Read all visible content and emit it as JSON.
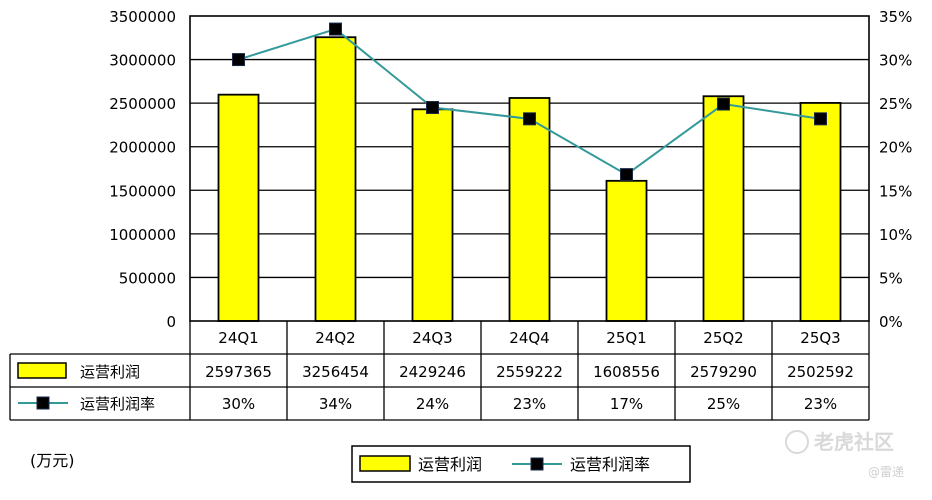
{
  "chart_data": {
    "type": "bar",
    "categories": [
      "24Q1",
      "24Q2",
      "24Q3",
      "24Q4",
      "25Q1",
      "25Q2",
      "25Q3"
    ],
    "series": [
      {
        "name": "运营利润",
        "type": "bar",
        "axis": "left",
        "values": [
          2597365,
          3256454,
          2429246,
          2559222,
          1608556,
          2579290,
          2502592
        ],
        "labels": [
          "2597365",
          "3256454",
          "2429246",
          "2559222",
          "1608556",
          "2579290",
          "2502592"
        ],
        "color": "#ffff00"
      },
      {
        "name": "运营利润率",
        "type": "line",
        "axis": "right",
        "values": [
          30,
          33.5,
          24.5,
          23.2,
          16.8,
          24.9,
          23.2
        ],
        "labels": [
          "30%",
          "34%",
          "24%",
          "23%",
          "17%",
          "25%",
          "23%"
        ],
        "color": "#339999"
      }
    ],
    "y_left": {
      "min": 0,
      "max": 3500000,
      "step": 500000,
      "ticks": [
        "0",
        "500000",
        "1000000",
        "1500000",
        "2000000",
        "2500000",
        "3000000",
        "3500000"
      ]
    },
    "y_right": {
      "min": 0,
      "max": 35,
      "step": 5,
      "ticks": [
        "0%",
        "5%",
        "10%",
        "15%",
        "20%",
        "25%",
        "30%",
        "35%"
      ]
    },
    "grid": true,
    "legend": "bottom",
    "unit_note": "(万元)"
  },
  "watermark": {
    "brand": "老虎社区",
    "handle": "@雷递"
  }
}
